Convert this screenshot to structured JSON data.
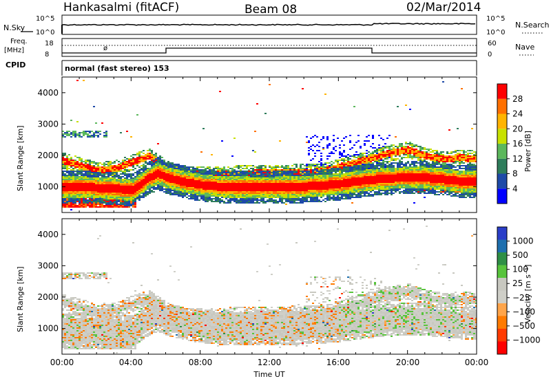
{
  "header": {
    "station": "Hankasalmi (fitACF)",
    "beam": "Beam 08",
    "date": "02/Mar/2014"
  },
  "noise_panel": {
    "left_label": "N.Sky",
    "right_label": "N.Search",
    "left_ticks": [
      "10^5",
      "10^0"
    ],
    "right_ticks": [
      "10^5",
      "10^0"
    ]
  },
  "freq_panel": {
    "left_label_1": "Freq.",
    "left_label_2": "[MHz]",
    "right_label": "Nave",
    "left_ticks": [
      "18",
      "8"
    ],
    "right_ticks": [
      "60",
      "0"
    ]
  },
  "cpid_panel": {
    "label": "CPID",
    "mode_text": "normal (fast stereo) 153"
  },
  "power_panel": {
    "ylabel": "Slant Range [km]",
    "colorbar_label": "Power [dB]",
    "colorbar_ticks": [
      "28",
      "24",
      "20",
      "16",
      "12",
      "8",
      "4"
    ]
  },
  "velocity_panel": {
    "ylabel": "Slant Range [km]",
    "colorbar_label": "Velocity [m s⁻¹]",
    "colorbar_ticks": [
      "1000",
      "500",
      "100",
      "25",
      "−25",
      "−100",
      "−500",
      "−1000"
    ]
  },
  "x_axis": {
    "label": "Time UT",
    "ticks": [
      "00:00",
      "04:00",
      "08:00",
      "12:00",
      "16:00",
      "20:00",
      "00:00"
    ]
  },
  "chart_data": [
    {
      "type": "heatmap",
      "title": "Power",
      "ylabel": "Slant Range [km]",
      "xlabel": "",
      "x_hours": [
        0,
        24
      ],
      "yticks": [
        1000,
        2000,
        3000,
        4000
      ],
      "colorbar_ticks": [
        4,
        8,
        12,
        16,
        20,
        24,
        28
      ],
      "colors": [
        "#0000ff",
        "#1e4aa8",
        "#2e7d5b",
        "#5cb85c",
        "#c8e100",
        "#ffb400",
        "#ff7000",
        "#ff0000"
      ],
      "traces": [
        {
          "name": "main_trace",
          "points": [
            [
              0.0,
              1020
            ],
            [
              1.0,
              1010
            ],
            [
              2.0,
              990
            ],
            [
              3.0,
              960
            ],
            [
              4.0,
              920
            ],
            [
              4.5,
              1100
            ],
            [
              5.0,
              1300
            ],
            [
              5.5,
              1450
            ],
            [
              6.0,
              1320
            ],
            [
              7.0,
              1180
            ],
            [
              8.0,
              1080
            ],
            [
              9.0,
              1030
            ],
            [
              10.0,
              1010
            ],
            [
              11.0,
              1000
            ],
            [
              12.0,
              1000
            ],
            [
              13.0,
              1010
            ],
            [
              14.0,
              1030
            ],
            [
              15.0,
              1060
            ],
            [
              16.0,
              1110
            ],
            [
              17.0,
              1190
            ],
            [
              18.0,
              1250
            ],
            [
              19.0,
              1290
            ],
            [
              20.0,
              1320
            ],
            [
              21.0,
              1310
            ],
            [
              22.0,
              1260
            ],
            [
              23.0,
              1200
            ],
            [
              24.0,
              1180
            ]
          ]
        },
        {
          "name": "upper_trace",
          "points": [
            [
              0.0,
              1850
            ],
            [
              1.0,
              1700
            ],
            [
              2.0,
              1550
            ],
            [
              3.0,
              1600
            ],
            [
              4.0,
              1800
            ],
            [
              5.0,
              2000
            ],
            [
              6.0,
              1600
            ],
            [
              7.0,
              1400
            ],
            [
              15.0,
              1500
            ],
            [
              16.0,
              1650
            ],
            [
              17.0,
              1800
            ],
            [
              18.0,
              1950
            ],
            [
              19.0,
              2100
            ],
            [
              20.0,
              2200
            ],
            [
              21.0,
              2000
            ],
            [
              22.0,
              1900
            ],
            [
              23.0,
              1950
            ],
            [
              24.0,
              1900
            ]
          ]
        }
      ]
    },
    {
      "type": "heatmap",
      "title": "Velocity",
      "ylabel": "Slant Range [km]",
      "xlabel": "Time UT",
      "x_hours": [
        0,
        24
      ],
      "yticks": [
        1000,
        2000,
        3000,
        4000
      ],
      "colorbar_ticks": [
        -1000,
        -500,
        -100,
        -25,
        25,
        100,
        500,
        1000
      ],
      "colors": [
        "#ff0000",
        "#ff3a00",
        "#ff7b00",
        "#ffa54a",
        "#cfcfc8",
        "#c8c8c0",
        "#58c43c",
        "#2e8f45",
        "#1e6fae",
        "#2a3ec8"
      ],
      "dominant_value_class": "25"
    }
  ]
}
